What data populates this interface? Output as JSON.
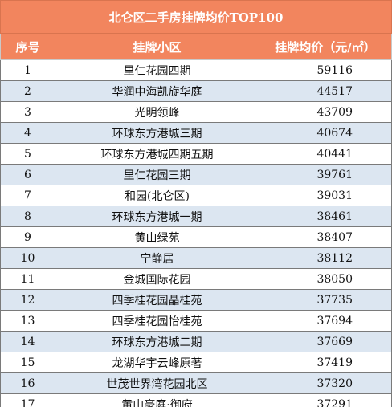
{
  "title": "北仑区二手房挂牌均价TOP100",
  "headers": {
    "rank": "序号",
    "name": "挂牌小区",
    "price": "挂牌均价（元/㎡）"
  },
  "rows": [
    {
      "rank": "1",
      "name": "里仁花园四期",
      "price": "59116"
    },
    {
      "rank": "2",
      "name": "华润中海凯旋华庭",
      "price": "44517"
    },
    {
      "rank": "3",
      "name": "光明领峰",
      "price": "43709"
    },
    {
      "rank": "4",
      "name": "环球东方港城三期",
      "price": "40674"
    },
    {
      "rank": "5",
      "name": "环球东方港城四期五期",
      "price": "40441"
    },
    {
      "rank": "6",
      "name": "里仁花园三期",
      "price": "39761"
    },
    {
      "rank": "7",
      "name": "和园(北仑区)",
      "price": "39031"
    },
    {
      "rank": "8",
      "name": "环球东方港城一期",
      "price": "38461"
    },
    {
      "rank": "9",
      "name": "黄山绿苑",
      "price": "38407"
    },
    {
      "rank": "10",
      "name": "宁静居",
      "price": "38112"
    },
    {
      "rank": "11",
      "name": "金城国际花园",
      "price": "38050"
    },
    {
      "rank": "12",
      "name": "四季桂花园晶桂苑",
      "price": "37735"
    },
    {
      "rank": "13",
      "name": "四季桂花园怡桂苑",
      "price": "37694"
    },
    {
      "rank": "14",
      "name": "环球东方港城二期",
      "price": "37669"
    },
    {
      "rank": "15",
      "name": "龙湖华宇云峰原著",
      "price": "37419"
    },
    {
      "rank": "16",
      "name": "世茂世界湾花园北区",
      "price": "37320"
    },
    {
      "rank": "17",
      "name": "黄山豪庭·御府",
      "price": "37291"
    }
  ],
  "colors": {
    "header_bg": "#f2855e",
    "alt_row_bg": "#dce6f1"
  }
}
